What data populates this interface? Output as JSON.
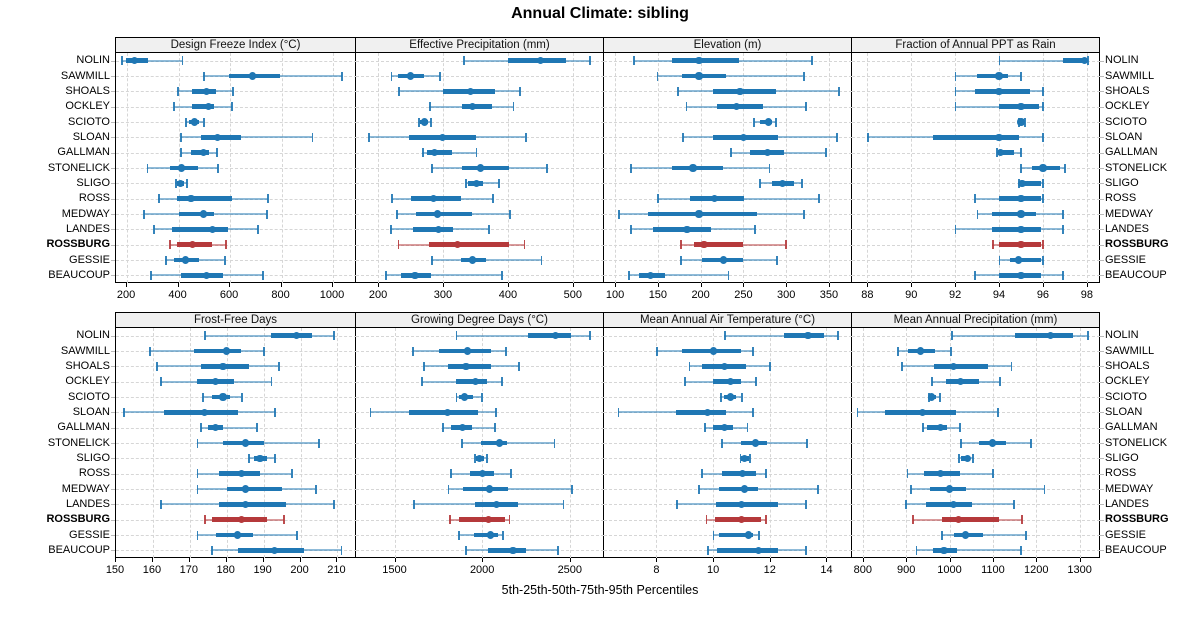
{
  "title": "Annual Climate: sibling",
  "footer": "5th-25th-50th-75th-95th Percentiles",
  "sites": [
    "NOLIN",
    "SAWMILL",
    "SHOALS",
    "OCKLEY",
    "SCIOTO",
    "SLOAN",
    "GALLMAN",
    "STONELICK",
    "SLIGO",
    "ROSS",
    "MEDWAY",
    "LANDES",
    "ROSSBURG",
    "GESSIE",
    "BEAUCOUP"
  ],
  "highlight_site": "ROSSBURG",
  "colors": {
    "series_normal": "#1f77b4",
    "series_highlight": "#b5393b",
    "gridline": "#d6d6d6",
    "strip_background": "#f0f0f0",
    "panel_border": "#000000"
  },
  "chart_data": {
    "type": "scatter",
    "subtype": "dot-and-whisker percentile intervals (lattice/trellis, 2 rows x 4 cols)",
    "percentiles": [
      5,
      25,
      50,
      75,
      95
    ],
    "caption": "5th-25th-50th-75th-95th Percentiles",
    "legend": "none",
    "grid": "dashed horizontal per site and vertical per tick",
    "panels": [
      {
        "title": "Design Freeze Index (°C)",
        "ticks": [
          200,
          400,
          600,
          800,
          1000
        ],
        "domain": [
          157,
          1093
        ],
        "values": [
          [
            180,
            196,
            229,
            281,
            414
          ],
          [
            496,
            594,
            687,
            795,
            1034
          ],
          [
            395,
            453,
            509,
            544,
            609
          ],
          [
            382,
            453,
            515,
            539,
            607
          ],
          [
            427,
            440,
            463,
            479,
            496
          ],
          [
            408,
            487,
            552,
            643,
            919
          ],
          [
            408,
            448,
            496,
            518,
            548
          ],
          [
            278,
            365,
            411,
            474,
            552
          ],
          [
            388,
            395,
            408,
            421,
            431
          ],
          [
            322,
            392,
            448,
            609,
            747
          ],
          [
            265,
            401,
            496,
            539,
            743
          ],
          [
            304,
            375,
            531,
            593,
            708
          ],
          [
            365,
            395,
            453,
            531,
            583
          ],
          [
            349,
            382,
            427,
            479,
            578
          ],
          [
            291,
            408,
            509,
            574,
            726
          ]
        ]
      },
      {
        "title": "Effective Precipitation (mm)",
        "ticks": [
          200,
          300,
          400,
          500
        ],
        "domain": [
          166,
          548
        ],
        "values": [
          [
            332,
            400,
            450,
            490,
            526
          ],
          [
            220,
            231,
            250,
            271,
            295
          ],
          [
            232,
            300,
            343,
            380,
            418
          ],
          [
            279,
            329,
            345,
            375,
            408
          ],
          [
            263,
            264,
            271,
            277,
            281
          ],
          [
            186,
            247,
            299,
            351,
            427
          ],
          [
            268,
            276,
            287,
            314,
            351
          ],
          [
            282,
            329,
            358,
            402,
            460
          ],
          [
            335,
            339,
            351,
            362,
            386
          ],
          [
            221,
            250,
            285,
            327,
            377
          ],
          [
            228,
            258,
            291,
            345,
            403
          ],
          [
            219,
            254,
            293,
            315,
            370
          ],
          [
            231,
            279,
            322,
            401,
            425
          ],
          [
            282,
            327,
            346,
            366,
            451
          ],
          [
            211,
            235,
            257,
            282,
            390
          ]
        ]
      },
      {
        "title": "Elevation (m)",
        "ticks": [
          100,
          150,
          200,
          250,
          300,
          350
        ],
        "domain": [
          87,
          377
        ],
        "values": [
          [
            122,
            166,
            198,
            245,
            330
          ],
          [
            149,
            178,
            198,
            230,
            320
          ],
          [
            173,
            215,
            246,
            288,
            361
          ],
          [
            183,
            219,
            242,
            273,
            323
          ],
          [
            262,
            270,
            279,
            284,
            288
          ],
          [
            179,
            215,
            250,
            290,
            359
          ],
          [
            235,
            258,
            278,
            297,
            346
          ],
          [
            118,
            166,
            191,
            226,
            280
          ],
          [
            269,
            283,
            296,
            309,
            318
          ],
          [
            150,
            187,
            216,
            251,
            338
          ],
          [
            104,
            138,
            198,
            266,
            320
          ],
          [
            118,
            144,
            184,
            212,
            263
          ],
          [
            177,
            192,
            204,
            249,
            299
          ],
          [
            177,
            202,
            227,
            250,
            289
          ],
          [
            116,
            128,
            141,
            158,
            232
          ]
        ]
      },
      {
        "title": "Fraction of Annual PPT as Rain",
        "ticks": [
          88,
          90,
          92,
          94,
          96,
          98
        ],
        "domain": [
          87.3,
          98.6
        ],
        "values": [
          [
            94.0,
            96.9,
            97.9,
            98.0,
            98.05
          ],
          [
            92.0,
            93.0,
            94.0,
            94.4,
            95.0
          ],
          [
            92.0,
            92.9,
            94.0,
            95.4,
            96.0
          ],
          [
            92.0,
            94.0,
            95.0,
            95.8,
            96.0
          ],
          [
            94.9,
            95.0,
            95.0,
            95.1,
            95.15
          ],
          [
            88.0,
            91.0,
            94.0,
            94.9,
            96.0
          ],
          [
            93.9,
            94.0,
            94.05,
            94.7,
            95.0
          ],
          [
            95.0,
            95.5,
            96.0,
            96.8,
            97.0
          ],
          [
            94.9,
            95.0,
            95.05,
            95.9,
            96.0
          ],
          [
            92.9,
            94.0,
            95.0,
            95.9,
            96.0
          ],
          [
            93.0,
            93.7,
            95.0,
            95.7,
            96.9
          ],
          [
            92.0,
            93.7,
            95.0,
            95.9,
            96.9
          ],
          [
            93.7,
            94.0,
            95.0,
            95.9,
            96.0
          ],
          [
            94.0,
            94.5,
            94.9,
            95.9,
            96.0
          ],
          [
            92.9,
            94.0,
            95.0,
            95.9,
            96.9
          ]
        ]
      },
      {
        "title": "Frost-Free Days",
        "ticks": [
          150,
          160,
          170,
          180,
          190,
          200,
          210
        ],
        "domain": [
          150,
          215.3
        ],
        "values": [
          [
            174,
            192,
            199,
            203,
            209
          ],
          [
            159,
            171,
            180,
            184,
            190
          ],
          [
            161,
            173,
            179,
            186,
            194
          ],
          [
            162,
            172,
            177,
            182,
            192
          ],
          [
            173.5,
            176,
            179,
            181,
            184
          ],
          [
            152,
            163,
            174,
            183,
            193
          ],
          [
            173,
            175,
            177,
            179,
            188
          ],
          [
            172,
            179,
            185,
            190,
            205
          ],
          [
            186,
            187.5,
            189,
            191,
            193
          ],
          [
            172,
            178,
            184,
            189,
            197.5
          ],
          [
            172,
            180,
            185,
            195,
            204
          ],
          [
            162,
            178,
            185,
            196,
            209
          ],
          [
            174,
            176,
            184,
            191,
            195.5
          ],
          [
            172,
            177,
            183,
            187,
            199
          ],
          [
            176,
            183,
            193,
            201,
            211
          ]
        ]
      },
      {
        "title": "Growing Degree Days (°C)",
        "ticks": [
          1500,
          2000,
          2500
        ],
        "domain": [
          1280,
          2695
        ],
        "values": [
          [
            1851,
            2263,
            2416,
            2506,
            2614
          ],
          [
            1603,
            1756,
            1914,
            2048,
            2134
          ],
          [
            1666,
            1805,
            1908,
            2048,
            2210
          ],
          [
            1656,
            1851,
            1962,
            2029,
            2111
          ],
          [
            1851,
            1870,
            1901,
            1947,
            1996
          ],
          [
            1361,
            1584,
            1800,
            1977,
            2076
          ],
          [
            1775,
            1824,
            1889,
            1943,
            2073
          ],
          [
            1882,
            1996,
            2099,
            2143,
            2410
          ],
          [
            1958,
            1966,
            1985,
            2010,
            2023
          ],
          [
            1819,
            1933,
            2000,
            2067,
            2162
          ],
          [
            1805,
            1889,
            2042,
            2149,
            2511
          ],
          [
            1609,
            1958,
            2080,
            2206,
            2462
          ],
          [
            1813,
            1870,
            2034,
            2130,
            2153
          ],
          [
            1866,
            1952,
            2048,
            2092,
            2115
          ],
          [
            1905,
            2034,
            2176,
            2252,
            2429
          ]
        ]
      },
      {
        "title": "Mean Annual Air Temperature (°C)",
        "ticks": [
          8,
          10,
          12,
          14
        ],
        "domain": [
          6.15,
          14.9
        ],
        "values": [
          [
            10.4,
            12.5,
            13.35,
            13.9,
            14.4
          ],
          [
            8.0,
            8.9,
            10.0,
            11.0,
            11.4
          ],
          [
            9.15,
            9.6,
            10.4,
            11.15,
            12.0
          ],
          [
            9.0,
            10.0,
            10.6,
            11.0,
            11.5
          ],
          [
            10.25,
            10.4,
            10.6,
            10.8,
            11.0
          ],
          [
            6.65,
            8.7,
            9.8,
            10.45,
            11.4
          ],
          [
            9.7,
            10.0,
            10.4,
            10.7,
            11.2
          ],
          [
            10.3,
            11.0,
            11.5,
            11.9,
            13.3
          ],
          [
            10.95,
            11.0,
            11.1,
            11.25,
            11.3
          ],
          [
            9.6,
            10.3,
            11.05,
            11.5,
            11.85
          ],
          [
            9.5,
            10.2,
            11.1,
            11.6,
            13.7
          ],
          [
            8.7,
            10.1,
            11.0,
            12.3,
            13.25
          ],
          [
            9.75,
            10.05,
            11.0,
            11.7,
            11.85
          ],
          [
            10.0,
            10.2,
            11.25,
            11.4,
            11.6
          ],
          [
            9.8,
            10.15,
            11.6,
            12.3,
            13.25
          ]
        ]
      },
      {
        "title": "Mean Annual Precipitation (mm)",
        "ticks": [
          800,
          900,
          1000,
          1100,
          1200,
          1300
        ],
        "domain": [
          775,
          1347
        ],
        "values": [
          [
            1005,
            1150,
            1233,
            1285,
            1318
          ],
          [
            881,
            905,
            933,
            967,
            1002
          ],
          [
            890,
            964,
            1010,
            1088,
            1142
          ],
          [
            959,
            992,
            1025,
            1069,
            1115
          ],
          [
            952,
            954,
            959,
            969,
            977
          ],
          [
            787,
            852,
            938,
            1015,
            1110
          ],
          [
            938,
            948,
            979,
            995,
            1023
          ],
          [
            1025,
            1069,
            1100,
            1131,
            1187
          ],
          [
            1021,
            1027,
            1041,
            1048,
            1054
          ],
          [
            902,
            941,
            979,
            1023,
            1100
          ],
          [
            910,
            954,
            1000,
            1038,
            1218
          ],
          [
            898,
            946,
            1010,
            1052,
            1148
          ],
          [
            915,
            982,
            1021,
            1115,
            1167
          ],
          [
            982,
            1010,
            1036,
            1077,
            1175
          ],
          [
            923,
            962,
            987,
            1018,
            1164
          ]
        ]
      }
    ]
  }
}
